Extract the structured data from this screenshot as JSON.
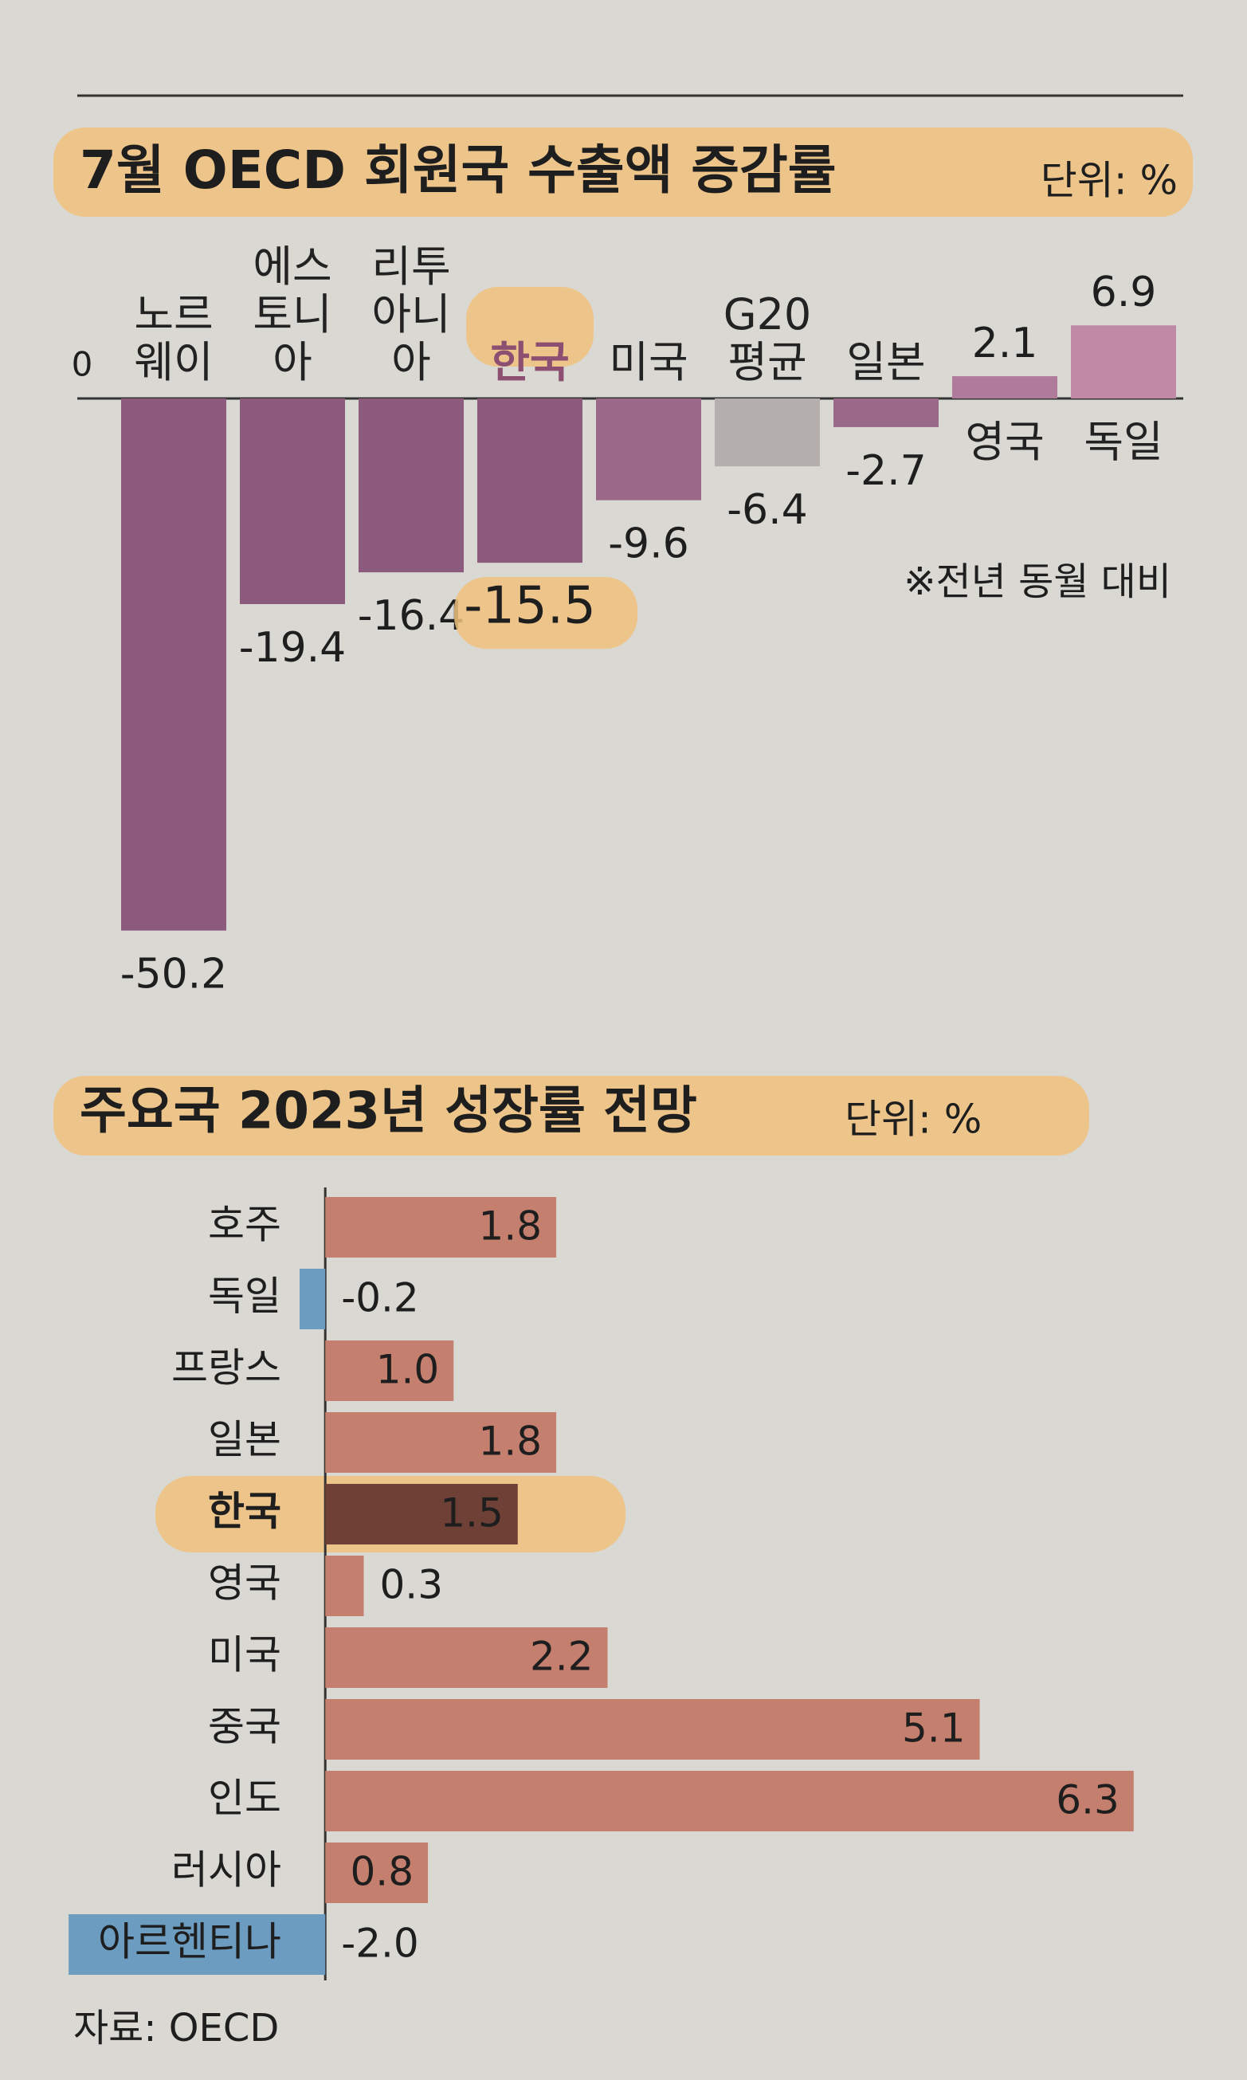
{
  "chart_data": [
    {
      "type": "bar",
      "title": "7월 OECD 회원국 수출액 증감률",
      "unit": "단위: %",
      "note": "※전년 동월 대비",
      "categories": [
        "노르웨이",
        "에스토니아",
        "리투아니아",
        "한국",
        "미국",
        "G20평균",
        "일본",
        "영국",
        "독일"
      ],
      "values": [
        -50.2,
        -19.4,
        -16.4,
        -15.5,
        -9.6,
        -6.4,
        -2.7,
        2.1,
        6.9
      ],
      "colors": [
        "#8c5a7c",
        "#8c5a7c",
        "#8c5a7c",
        "#8c5a7c",
        "#9a6888",
        "#b4afac",
        "#9a6888",
        "#b07a9a",
        "#c08aa6"
      ],
      "highlight": 3,
      "ylim": [
        -52,
        8
      ],
      "yticks": [
        0
      ]
    },
    {
      "type": "hbar",
      "title": "주요국 2023년 성장률 전망",
      "unit": "단위: %",
      "source": "자료: OECD",
      "categories": [
        "호주",
        "독일",
        "프랑스",
        "일본",
        "한국",
        "영국",
        "미국",
        "중국",
        "인도",
        "러시아",
        "아르헨티나"
      ],
      "values": [
        1.8,
        -0.2,
        1.0,
        1.8,
        1.5,
        0.3,
        2.2,
        5.1,
        6.3,
        0.8,
        -2.0
      ],
      "value_labels": [
        "1.8",
        "-0.2",
        "1.0",
        "1.8",
        "1.5",
        "0.3",
        "2.2",
        "5.1",
        "6.3",
        "0.8",
        "-2.0"
      ],
      "color": "#c47f6e",
      "highlight_color": "#6e4036",
      "negative_color": "#6c9cc0",
      "highlight": 4,
      "xlim": [
        -2.1,
        6.5
      ]
    }
  ]
}
